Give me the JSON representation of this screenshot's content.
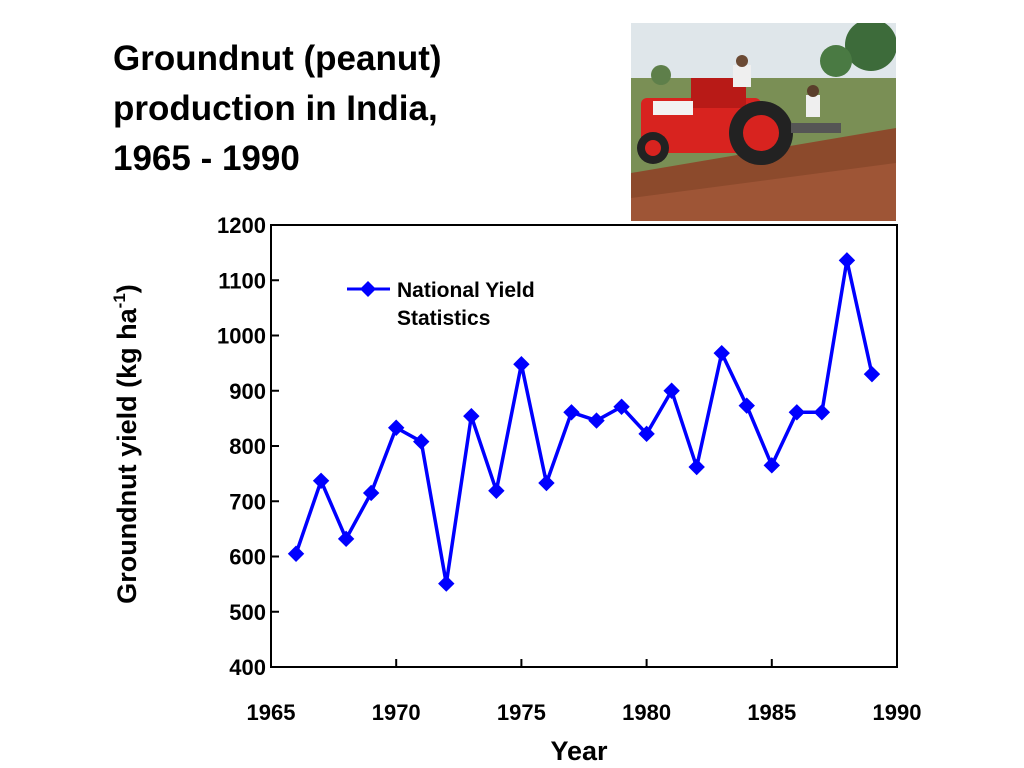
{
  "title_lines": [
    "Groundnut (peanut)",
    "production in India,",
    "1965 - 1990"
  ],
  "photo": {
    "description_icon": "tractor-photo-icon"
  },
  "chart_data": {
    "type": "line",
    "title": "Groundnut (peanut) production in India, 1965 - 1990",
    "xlabel": "Year",
    "ylabel": "Groundnut yield (kg ha-1)",
    "ylabel_parts": {
      "main": "Groundnut yield (kg ha",
      "sup": "-1",
      "close": ")"
    },
    "xlim": [
      1965,
      1990
    ],
    "ylim": [
      400,
      1200
    ],
    "xticks": [
      1965,
      1970,
      1975,
      1980,
      1985,
      1990
    ],
    "yticks": [
      400,
      500,
      600,
      700,
      800,
      900,
      1000,
      1100,
      1200
    ],
    "grid": false,
    "legend_position": "top-left",
    "series": [
      {
        "name": "National Yield Statistics",
        "name_lines": [
          "National Yield",
          "Statistics"
        ],
        "color": "#0000ff",
        "marker": "diamond",
        "x": [
          1966,
          1967,
          1968,
          1969,
          1970,
          1971,
          1972,
          1973,
          1974,
          1975,
          1976,
          1977,
          1978,
          1979,
          1980,
          1981,
          1982,
          1983,
          1984,
          1985,
          1986,
          1987,
          1988,
          1989
        ],
        "y": [
          605,
          737,
          632,
          715,
          833,
          808,
          551,
          854,
          719,
          948,
          733,
          861,
          846,
          871,
          822,
          900,
          762,
          968,
          873,
          765,
          861,
          861,
          1136,
          930
        ]
      }
    ]
  }
}
